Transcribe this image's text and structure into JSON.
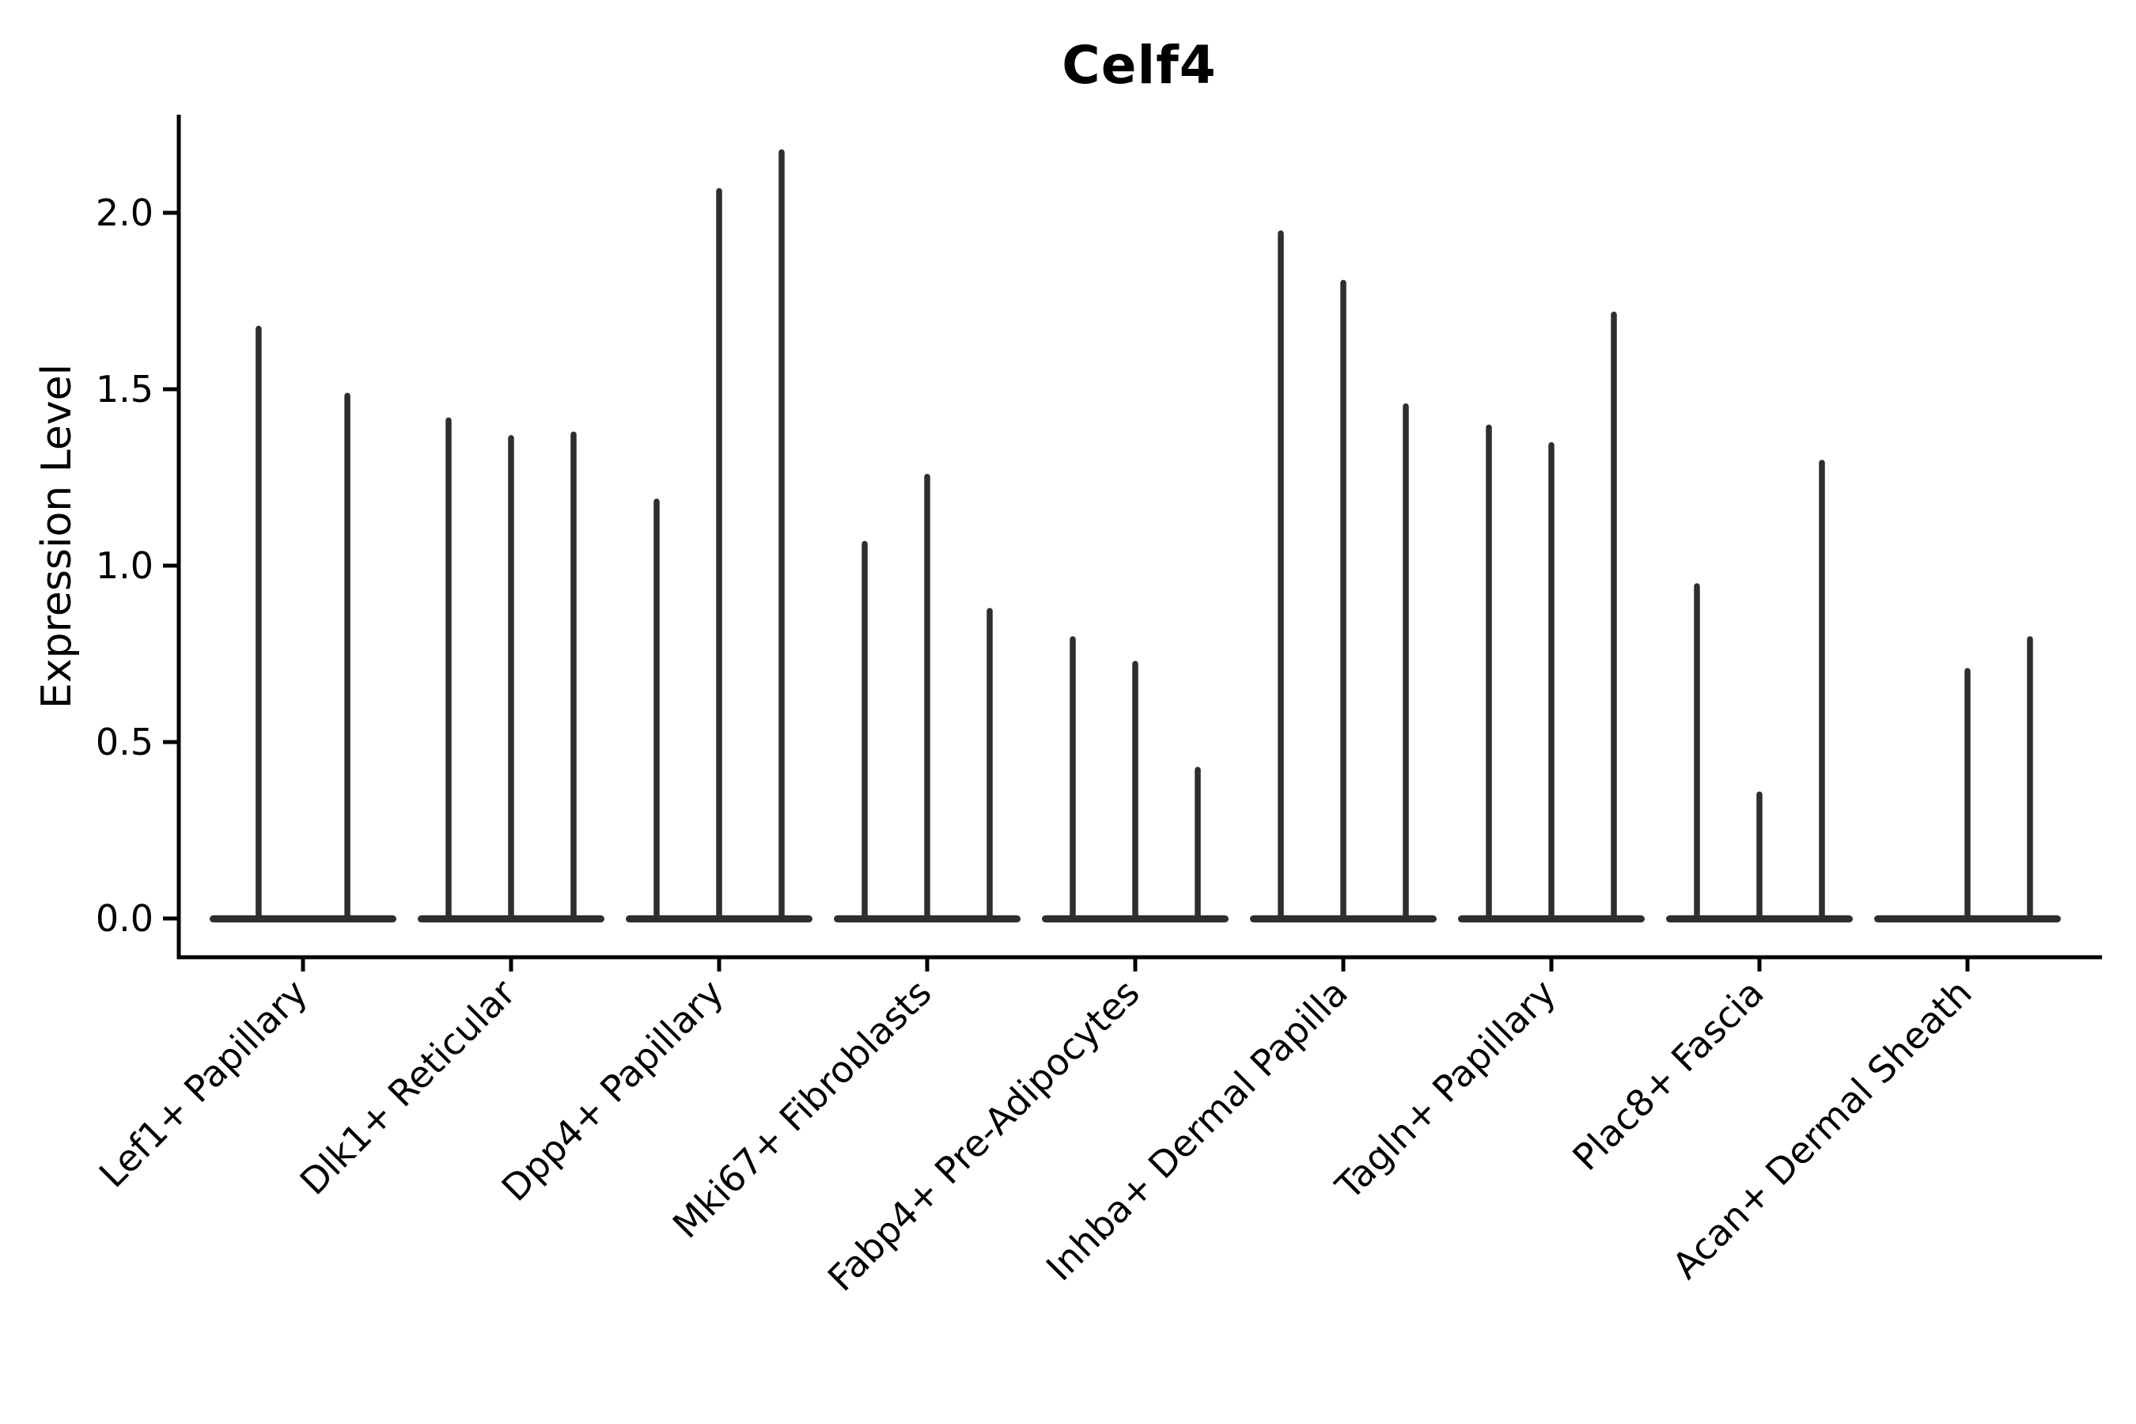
{
  "figure": {
    "title": "Celf4",
    "ylabel": "Expression Level"
  },
  "chart_data": {
    "type": "violin",
    "title": "Celf4",
    "xlabel": "",
    "ylabel": "Expression Level",
    "ylim": [
      -0.11,
      2.29
    ],
    "ytick_labels": [
      "0.0",
      "0.5",
      "1.0",
      "1.5",
      "2.0"
    ],
    "ytick_values": [
      0.0,
      0.5,
      1.0,
      1.5,
      2.0
    ],
    "grid": false,
    "legend": null,
    "violin_color": "#2e2e2e",
    "axis_color": "#000000",
    "categories": [
      "Lef1+ Papillary",
      "Dlk1+ Reticular",
      "Dpp4+ Papillary",
      "Mki67+ Fibroblasts",
      "Fabp4+ Pre-Adipocytes",
      "Inhba+ Dermal Papilla",
      "Tagln+ Papillary",
      "Plac8+ Fascia",
      "Acan+ Dermal Sheath"
    ],
    "groups": [
      {
        "category": "Lef1+ Papillary",
        "violins": [
          {
            "slot": -0.71,
            "max": 1.68
          },
          {
            "slot": 0.71,
            "max": 1.49
          }
        ]
      },
      {
        "category": "Dlk1+ Reticular",
        "violins": [
          {
            "slot": -1,
            "max": 1.42
          },
          {
            "slot": 0,
            "max": 1.37
          },
          {
            "slot": 1,
            "max": 1.38
          }
        ]
      },
      {
        "category": "Dpp4+ Papillary",
        "violins": [
          {
            "slot": -1,
            "max": 1.19
          },
          {
            "slot": 0,
            "max": 2.07
          },
          {
            "slot": 1,
            "max": 2.18
          }
        ]
      },
      {
        "category": "Mki67+ Fibroblasts",
        "violins": [
          {
            "slot": -1,
            "max": 1.07
          },
          {
            "slot": 0,
            "max": 1.26
          },
          {
            "slot": 1,
            "max": 0.88
          }
        ]
      },
      {
        "category": "Fabp4+ Pre-Adipocytes",
        "violins": [
          {
            "slot": -1,
            "max": 0.8
          },
          {
            "slot": 0,
            "max": 0.73
          },
          {
            "slot": 1,
            "max": 0.43
          }
        ]
      },
      {
        "category": "Inhba+ Dermal Papilla",
        "violins": [
          {
            "slot": -1,
            "max": 1.95
          },
          {
            "slot": 0,
            "max": 1.81
          },
          {
            "slot": 1,
            "max": 1.46
          }
        ]
      },
      {
        "category": "Tagln+ Papillary",
        "violins": [
          {
            "slot": -1,
            "max": 1.4
          },
          {
            "slot": 0,
            "max": 1.35
          },
          {
            "slot": 1,
            "max": 1.72
          }
        ]
      },
      {
        "category": "Plac8+ Fascia",
        "violins": [
          {
            "slot": -1,
            "max": 0.95
          },
          {
            "slot": 0,
            "max": 0.36
          },
          {
            "slot": 1,
            "max": 1.3
          }
        ]
      },
      {
        "category": "Acan+ Dermal Sheath",
        "violins": [
          {
            "slot": 0,
            "max": 0.71
          },
          {
            "slot": 1,
            "max": 0.8
          }
        ]
      }
    ]
  }
}
